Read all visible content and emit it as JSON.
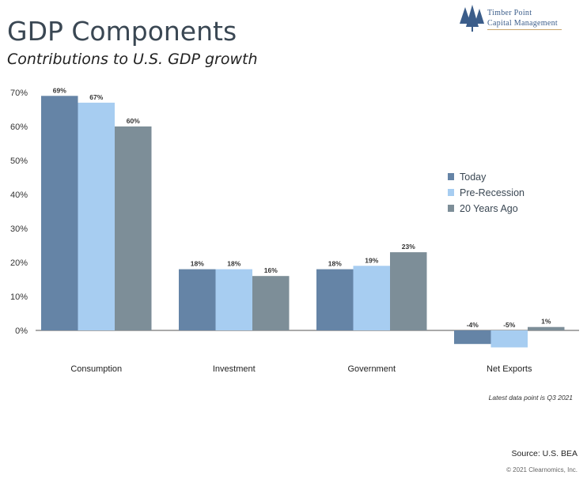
{
  "header": {
    "title": "GDP Components",
    "subtitle": "Contributions to U.S. GDP growth"
  },
  "logo": {
    "line1": "Timber Point",
    "line2": "Capital Management",
    "icon": "pine-trees-icon",
    "color": "#3b5d8a"
  },
  "chart_data": {
    "type": "bar",
    "title": "GDP Components",
    "subtitle": "Contributions to U.S. GDP growth",
    "categories": [
      "Consumption",
      "Investment",
      "Government",
      "Net Exports"
    ],
    "series": [
      {
        "name": "Today",
        "values": [
          69,
          18,
          18,
          -4
        ],
        "labels": [
          "69%",
          "18%",
          "18%",
          "-4%"
        ],
        "color": "#6584a6"
      },
      {
        "name": "Pre-Recession",
        "values": [
          67,
          18,
          19,
          -5
        ],
        "labels": [
          "67%",
          "18%",
          "19%",
          "-5%"
        ],
        "color": "#a7cdf1"
      },
      {
        "name": "20 Years Ago",
        "values": [
          60,
          16,
          23,
          1
        ],
        "labels": [
          "60%",
          "16%",
          "23%",
          "1%"
        ],
        "color": "#7d8e98"
      }
    ],
    "yticks": [
      "0%",
      "10%",
      "20%",
      "30%",
      "40%",
      "50%",
      "60%",
      "70%"
    ],
    "ylim": [
      -5,
      70
    ],
    "grid": false,
    "legend_position": "right"
  },
  "footer": {
    "note": "Latest data point is Q3 2021",
    "source": "Source: U.S. BEA",
    "copyright": "© 2021 Clearnomics, Inc."
  }
}
